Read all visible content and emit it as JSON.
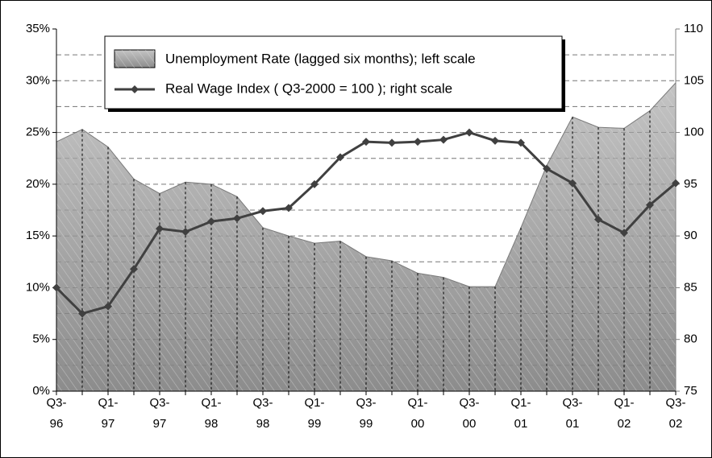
{
  "chart_data": {
    "type": "area_line",
    "categories": [
      "Q3-96",
      null,
      "Q1-97",
      null,
      "Q3-97",
      null,
      "Q1-98",
      null,
      "Q3-98",
      null,
      "Q1-99",
      null,
      "Q3-99",
      null,
      "Q1-00",
      null,
      "Q3-00",
      null,
      "Q1-01",
      null,
      "Q3-01",
      null,
      "Q1-02",
      null,
      "Q3-02"
    ],
    "series": [
      {
        "name": "Unemployment Rate (lagged six months); left scale",
        "type": "area",
        "color": "#a6a6a6",
        "axis": "y",
        "values": [
          24.1,
          25.3,
          23.6,
          20.5,
          19.1,
          20.2,
          20.0,
          18.8,
          15.8,
          15.0,
          14.3,
          14.5,
          13.0,
          12.6,
          11.4,
          11.0,
          10.1,
          10.1,
          15.8,
          21.8,
          26.5,
          25.5,
          25.4,
          27.1,
          29.8
        ]
      },
      {
        "name": "Real Wage Index ( Q3-2000 = 100 ); right scale",
        "type": "line",
        "color": "#404040",
        "axis": "y2",
        "values": [
          85.0,
          82.5,
          83.2,
          86.8,
          90.7,
          90.4,
          91.4,
          91.7,
          92.4,
          92.7,
          95.0,
          97.6,
          99.1,
          99.0,
          99.1,
          99.3,
          100.0,
          99.2,
          99.0,
          96.5,
          95.1,
          91.6,
          90.3,
          93.0,
          95.1
        ]
      }
    ],
    "ylim": [
      0,
      35
    ],
    "yticks": [
      {
        "value": 0,
        "label": "0%"
      },
      {
        "value": 5,
        "label": "5%"
      },
      {
        "value": 10,
        "label": "10%"
      },
      {
        "value": 15,
        "label": "15%"
      },
      {
        "value": 20,
        "label": "20%"
      },
      {
        "value": 25,
        "label": "25%"
      },
      {
        "value": 30,
        "label": "30%"
      },
      {
        "value": 35,
        "label": "35%"
      }
    ],
    "y2lim": [
      75,
      110
    ],
    "y2ticks": [
      75,
      80,
      85,
      90,
      95,
      100,
      105,
      110
    ],
    "ygrid": [
      2.5,
      5,
      7.5,
      10,
      12.5,
      15,
      17.5,
      20,
      22.5,
      25,
      27.5,
      30,
      32.5
    ],
    "drop_lines": true,
    "legend": "top-left"
  }
}
